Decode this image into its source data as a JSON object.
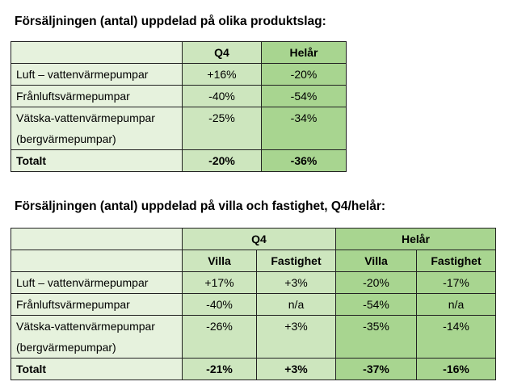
{
  "table1": {
    "title": "Försäljningen (antal) uppdelad på olika produktslag:",
    "headers": [
      "",
      "Q4",
      "Helår"
    ],
    "rows": [
      {
        "label_lines": [
          "Luft – vattenvärmepumpar"
        ],
        "q4": "+16%",
        "helar": "-20%"
      },
      {
        "label_lines": [
          "Frånluftsvärmepumpar"
        ],
        "q4": "-40%",
        "helar": "-54%"
      },
      {
        "label_lines": [
          "Vätska-vattenvärmepumpar",
          "(bergvärmepumpar)"
        ],
        "q4": "-25%",
        "helar": "-34%"
      }
    ],
    "total": {
      "label": "Totalt",
      "q4": "-20%",
      "helar": "-36%"
    }
  },
  "table2": {
    "title": "Försäljningen (antal) uppdelad på villa och fastighet, Q4/helår:",
    "group_headers": [
      "Q4",
      "Helår"
    ],
    "sub_headers": [
      "Villa",
      "Fastighet",
      "Villa",
      "Fastighet"
    ],
    "rows": [
      {
        "label_lines": [
          "Luft – vattenvärmepumpar"
        ],
        "values": [
          "+17%",
          "+3%",
          "-20%",
          "-17%"
        ]
      },
      {
        "label_lines": [
          "Frånluftsvärmepumpar"
        ],
        "values": [
          "-40%",
          "n/a",
          "-54%",
          "n/a"
        ]
      },
      {
        "label_lines": [
          "Vätska-vattenvärmepumpar",
          "(bergvärmepumpar)"
        ],
        "values": [
          "-26%",
          "+3%",
          "-35%",
          "-14%"
        ]
      }
    ],
    "total": {
      "label": "Totalt",
      "values": [
        "-21%",
        "+3%",
        "-37%",
        "-16%"
      ]
    }
  }
}
